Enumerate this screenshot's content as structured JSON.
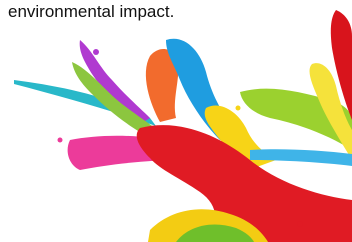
{
  "caption": "environmental impact."
}
